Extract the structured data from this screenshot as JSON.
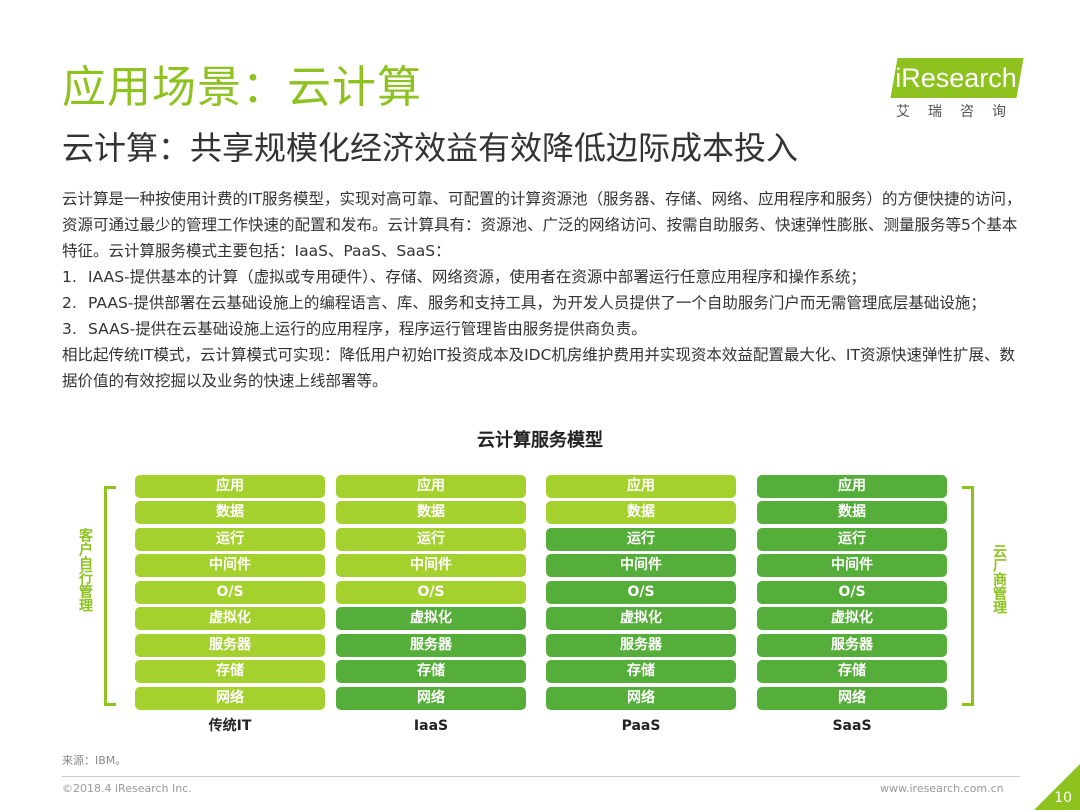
{
  "header": {
    "title": "应用场景：云计算",
    "subtitle": "云计算：共享规模化经济效益有效降低边际成本投入"
  },
  "logo": {
    "text": "iResearch",
    "cn": "艾瑞咨询"
  },
  "body": {
    "para1": "云计算是一种按使用计费的IT服务模型，实现对高可靠、可配置的计算资源池（服务器、存储、网络、应用程序和服务）的方便快捷的访问，资源可通过最少的管理工作快速的配置和发布。云计算具有：资源池、广泛的网络访问、按需自助服务、快速弹性膨胀、测量服务等5个基本特征。云计算服务模式主要包括：IaaS、PaaS、SaaS：",
    "items": [
      {
        "num": "1.",
        "text": "IAAS-提供基本的计算（虚拟或专用硬件）、存储、网络资源，使用者在资源中部署运行任意应用程序和操作系统；"
      },
      {
        "num": "2.",
        "text": "PAAS-提供部署在云基础设施上的编程语言、库、服务和支持工具，为开发人员提供了一个自助服务门户而无需管理底层基础设施；"
      },
      {
        "num": "3.",
        "text": "SAAS-提供在云基础设施上运行的应用程序，程序运行管理皆由服务提供商负责。"
      }
    ],
    "para2": "相比起传统IT模式，云计算模式可实现：降低用户初始IT投资成本及IDC机房维护费用并实现资本效益配置最大化、IT资源快速弹性扩展、数据价值的有效挖掘以及业务的快速上线部署等。"
  },
  "diagram": {
    "title": "云计算服务模型",
    "left_label": "客户自行管理",
    "right_label": "云厂商管理",
    "layers": [
      "应用",
      "数据",
      "运行",
      "中间件",
      "O/S",
      "虚拟化",
      "服务器",
      "存储",
      "网络"
    ],
    "columns": [
      {
        "label": "传统IT",
        "customer_managed_layers": 9
      },
      {
        "label": "IaaS",
        "customer_managed_layers": 5
      },
      {
        "label": "PaaS",
        "customer_managed_layers": 2
      },
      {
        "label": "SaaS",
        "customer_managed_layers": 0
      }
    ],
    "colors": {
      "customer": "#a5d12e",
      "vendor": "#55ae3a"
    }
  },
  "footer": {
    "source": "来源：IBM。",
    "copyright": "©2018.4 iResearch Inc.",
    "website": "www.iresearch.com.cn",
    "page": "10"
  }
}
